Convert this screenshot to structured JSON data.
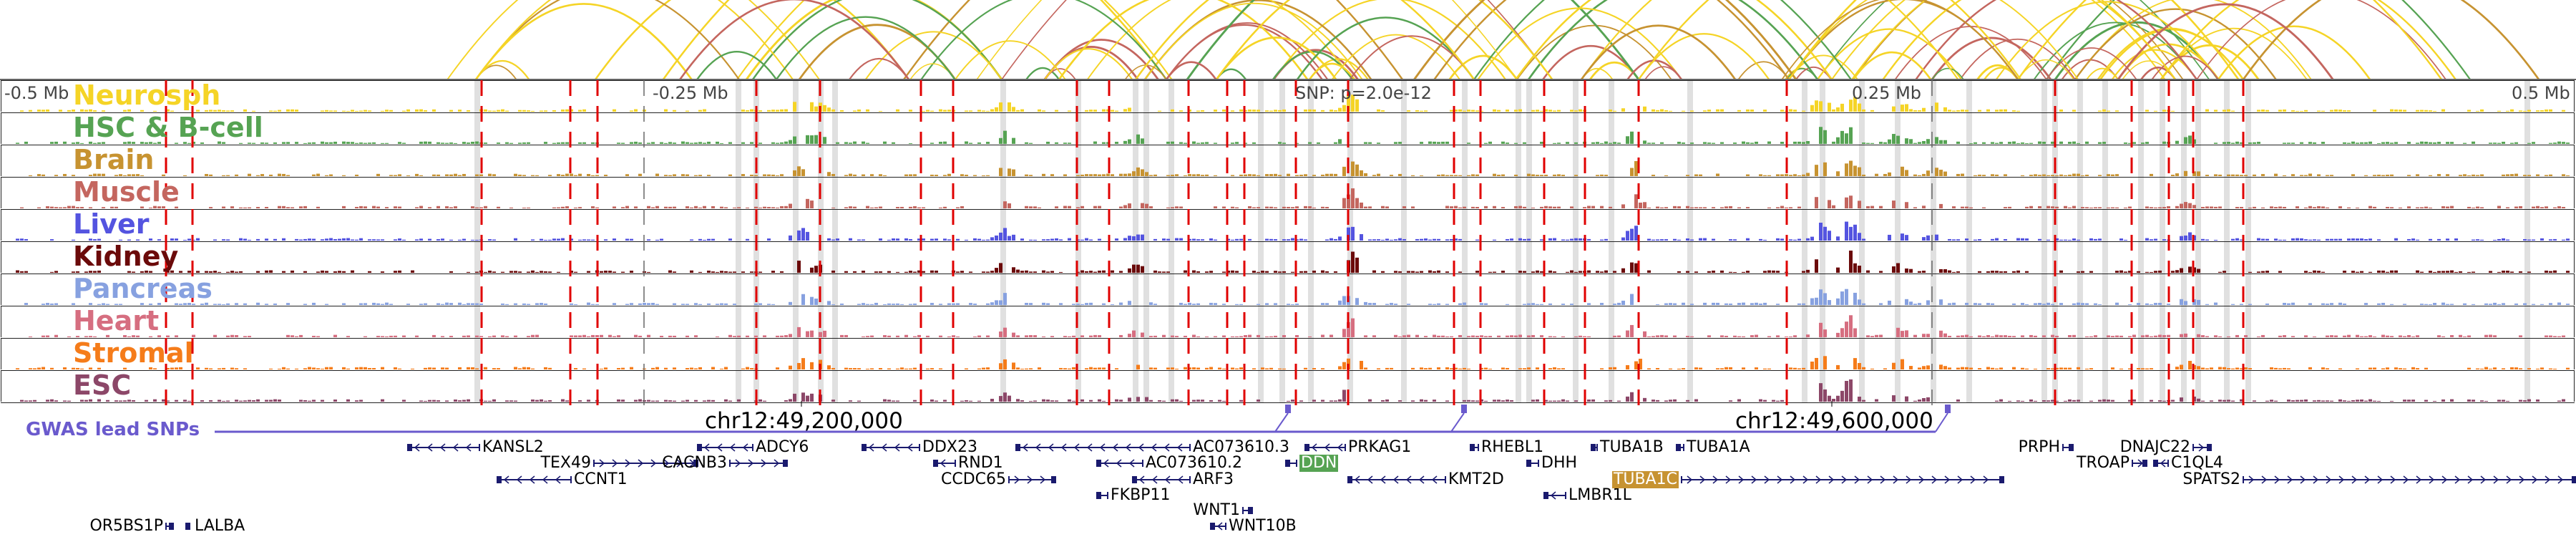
{
  "tracks": [
    {
      "name": "Neurosph",
      "color": "#f5d426"
    },
    {
      "name": "HSC & B-cell",
      "color": "#56a353"
    },
    {
      "name": "Brain",
      "color": "#c79331"
    },
    {
      "name": "Muscle",
      "color": "#c4665f"
    },
    {
      "name": "Liver",
      "color": "#5454e0"
    },
    {
      "name": "Kidney",
      "color": "#6b0a0a"
    },
    {
      "name": "Pancreas",
      "color": "#87a1e0"
    },
    {
      "name": "Heart",
      "color": "#d66e80"
    },
    {
      "name": "Stromal",
      "color": "#f57c1a"
    },
    {
      "name": "ESC",
      "color": "#8c4768"
    }
  ],
  "ruler": {
    "left": "-0.5 Mb",
    "left_mid": "-0.25 Mb",
    "center": "SNP: p=2.0e-12",
    "right_mid": "0.25 Mb",
    "right": "0.5 Mb"
  },
  "gwas": {
    "label": "GWAS lead SNPs",
    "color": "#6a5acd"
  },
  "coords": [
    "chr12:49,200,000",
    "chr12:49,600,000"
  ],
  "genes": [
    {
      "name": "KANSL2",
      "row": 0,
      "strand": "-"
    },
    {
      "name": "TEX49",
      "row": 1,
      "strand": "+"
    },
    {
      "name": "CCNT1",
      "row": 2,
      "strand": "-"
    },
    {
      "name": "ADCY6",
      "row": 0,
      "strand": "-"
    },
    {
      "name": "CACNB3",
      "row": 1,
      "strand": "+"
    },
    {
      "name": "DDX23",
      "row": 0,
      "strand": "-"
    },
    {
      "name": "RND1",
      "row": 1,
      "strand": "-"
    },
    {
      "name": "CCDC65",
      "row": 2,
      "strand": "+"
    },
    {
      "name": "AC073610.3",
      "row": 0,
      "strand": "-"
    },
    {
      "name": "AC073610.2",
      "row": 1,
      "strand": "-"
    },
    {
      "name": "ARF3",
      "row": 2,
      "strand": "-"
    },
    {
      "name": "FKBP11",
      "row": 3,
      "strand": "-"
    },
    {
      "name": "WNT1",
      "row": 4,
      "strand": "+"
    },
    {
      "name": "WNT10B",
      "row": 5,
      "strand": "-"
    },
    {
      "name": "PRKAG1",
      "row": 0,
      "strand": "-"
    },
    {
      "name": "DDN",
      "row": 1,
      "strand": "-",
      "highlight": "#56a353"
    },
    {
      "name": "KMT2D",
      "row": 2,
      "strand": "-"
    },
    {
      "name": "RHEBL1",
      "row": 0,
      "strand": "-"
    },
    {
      "name": "DHH",
      "row": 1,
      "strand": "-"
    },
    {
      "name": "LMBR1L",
      "row": 3,
      "strand": "-"
    },
    {
      "name": "TUBA1B",
      "row": 0,
      "strand": "-"
    },
    {
      "name": "TUBA1A",
      "row": 0,
      "strand": "-"
    },
    {
      "name": "TUBA1C",
      "row": 2,
      "strand": "+",
      "highlight": "#c79331"
    },
    {
      "name": "PRPH",
      "row": 0,
      "strand": "+"
    },
    {
      "name": "DNAJC22",
      "row": 0,
      "strand": "+"
    },
    {
      "name": "TROAP",
      "row": 1,
      "strand": "+"
    },
    {
      "name": "C1QL4",
      "row": 1,
      "strand": "-"
    },
    {
      "name": "SPATS2",
      "row": 2,
      "strand": "+"
    },
    {
      "name": "OR5BS1P",
      "row": 5,
      "strand": "+"
    },
    {
      "name": "LALBA",
      "row": 5,
      "strand": "+"
    }
  ],
  "colors": {
    "gene": "#1a1a6e",
    "red_line": "#e00000",
    "stripe": "#e0e0e0"
  }
}
